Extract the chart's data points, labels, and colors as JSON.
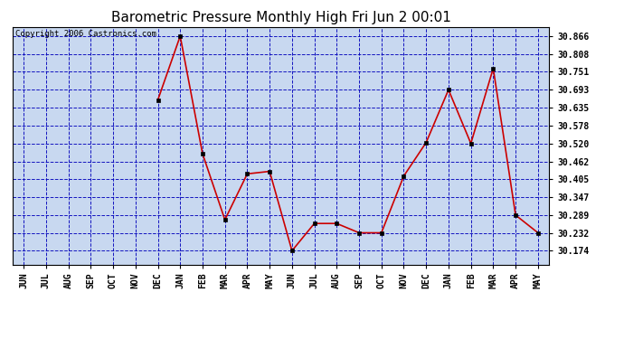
{
  "title": "Barometric Pressure Monthly High Fri Jun 2 00:01",
  "copyright": "Copyright 2006 Castronics.com",
  "x_labels": [
    "JUN",
    "JUL",
    "AUG",
    "SEP",
    "OCT",
    "NOV",
    "DEC",
    "JAN",
    "FEB",
    "MAR",
    "APR",
    "MAY",
    "JUN",
    "JUL",
    "AUG",
    "SEP",
    "OCT",
    "NOV",
    "DEC",
    "JAN",
    "FEB",
    "MAR",
    "APR",
    "MAY"
  ],
  "y_values": [
    null,
    null,
    null,
    null,
    null,
    null,
    30.66,
    30.866,
    30.487,
    30.274,
    30.422,
    30.43,
    30.174,
    30.262,
    30.262,
    30.232,
    30.232,
    30.415,
    30.523,
    30.693,
    30.52,
    30.762,
    30.289,
    30.232
  ],
  "ylim_min": 30.13,
  "ylim_max": 30.895,
  "yticks": [
    30.174,
    30.232,
    30.289,
    30.347,
    30.405,
    30.462,
    30.52,
    30.578,
    30.635,
    30.693,
    30.751,
    30.808,
    30.866
  ],
  "line_color": "#cc0000",
  "marker_color": "#000000",
  "bg_color": "#c8d8f0",
  "grid_color": "#0000bb",
  "title_fontsize": 11,
  "copyright_fontsize": 6.5,
  "tick_fontsize": 7,
  "figwidth": 6.9,
  "figheight": 3.75,
  "dpi": 100
}
